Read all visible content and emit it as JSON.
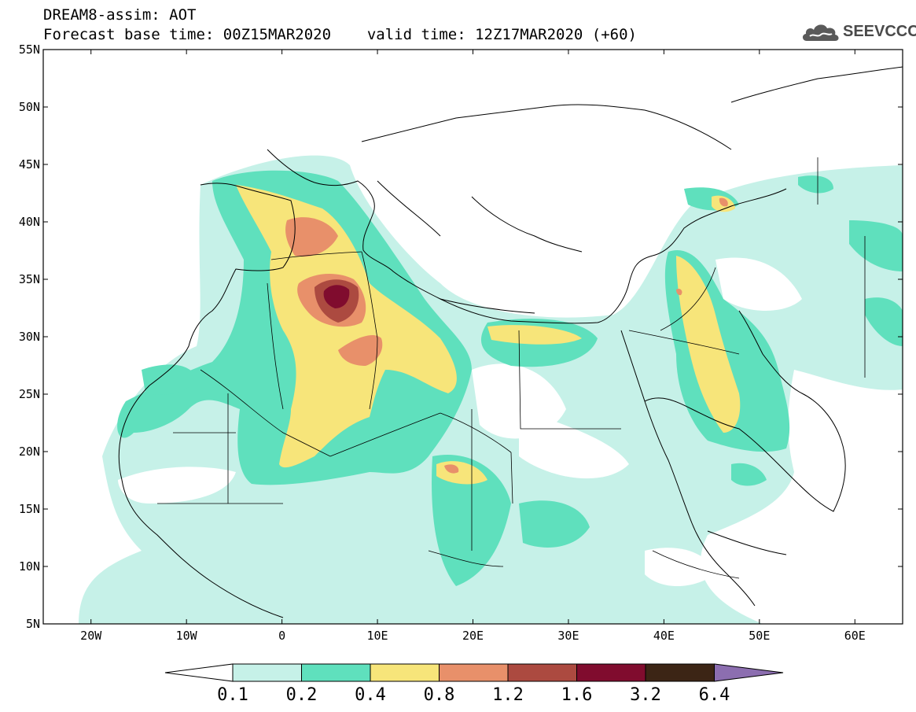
{
  "header": {
    "title": "DREAM8-assim: AOT",
    "base_time_label": "Forecast base time: 00Z15MAR2020",
    "valid_time_label": "valid time: 12Z17MAR2020 (+60)"
  },
  "logo": {
    "text": "SEEVCCC",
    "icon": "cloud-icon"
  },
  "map": {
    "lon_range": [
      -25,
      65
    ],
    "lat_range": [
      5,
      55
    ],
    "lon_ticks": [
      {
        "value": -20,
        "label": "20W"
      },
      {
        "value": -10,
        "label": "10W"
      },
      {
        "value": 0,
        "label": "0"
      },
      {
        "value": 10,
        "label": "10E"
      },
      {
        "value": 20,
        "label": "20E"
      },
      {
        "value": 30,
        "label": "30E"
      },
      {
        "value": 40,
        "label": "40E"
      },
      {
        "value": 50,
        "label": "50E"
      },
      {
        "value": 60,
        "label": "60E"
      }
    ],
    "lat_ticks": [
      {
        "value": 55,
        "label": "55N"
      },
      {
        "value": 50,
        "label": "50N"
      },
      {
        "value": 45,
        "label": "45N"
      },
      {
        "value": 40,
        "label": "40N"
      },
      {
        "value": 35,
        "label": "35N"
      },
      {
        "value": 30,
        "label": "30N"
      },
      {
        "value": 25,
        "label": "25N"
      },
      {
        "value": 20,
        "label": "20N"
      },
      {
        "value": 15,
        "label": "15N"
      },
      {
        "value": 10,
        "label": "10N"
      },
      {
        "value": 5,
        "label": "5N"
      }
    ]
  },
  "legend": {
    "levels": [
      "0.1",
      "0.2",
      "0.4",
      "0.8",
      "1.2",
      "1.6",
      "3.2",
      "6.4"
    ],
    "colors": [
      "#c6f1e8",
      "#5fe0bd",
      "#f7e57a",
      "#e8906a",
      "#ac4a40",
      "#800c2e",
      "#3c2515",
      "#8c6eb0"
    ],
    "under_color": "#ffffff",
    "over_color": "#8c6eb0"
  }
}
